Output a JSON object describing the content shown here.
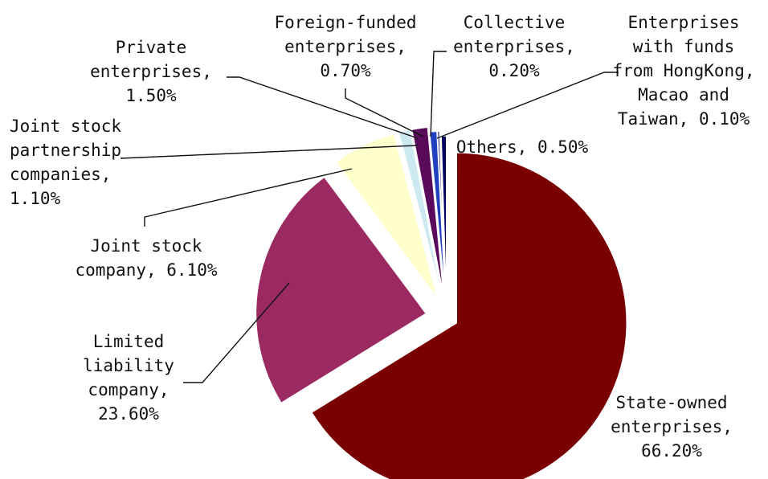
{
  "chart_data": {
    "type": "pie",
    "title": "",
    "legend": "none",
    "slices": [
      {
        "name": "State-owned enterprises",
        "value": 66.2,
        "display": "66.20%",
        "color": "#7a0000"
      },
      {
        "name": "Limited liability company",
        "value": 23.6,
        "display": "23.60%",
        "color": "#9b2a63"
      },
      {
        "name": "Joint stock company",
        "value": 6.1,
        "display": "6.10%",
        "color": "#ffffcc"
      },
      {
        "name": "Joint stock partnership companies",
        "value": 1.1,
        "display": "1.10%",
        "color": "#cce9f2"
      },
      {
        "name": "Private enterprises",
        "value": 1.5,
        "display": "1.50%",
        "color": "#5a0a5a"
      },
      {
        "name": "Foreign-funded enterprises",
        "value": 0.7,
        "display": "0.70%",
        "color": "#2040c0"
      },
      {
        "name": "Collective enterprises",
        "value": 0.2,
        "display": "0.20%",
        "color": "#1a1a80"
      },
      {
        "name": "Enterprises with funds from HongKong, Macao and Taiwan",
        "value": 0.1,
        "display": "0.10%",
        "color": "#00007a"
      },
      {
        "name": "Others",
        "value": 0.5,
        "display": "0.50%",
        "color": "#000060"
      }
    ],
    "labels": [
      {
        "slice": 0,
        "lines": [
          "State-owned",
          "enterprises,",
          "66.20%"
        ]
      },
      {
        "slice": 1,
        "lines": [
          "Limited",
          "liability",
          "company,",
          "23.60%"
        ]
      },
      {
        "slice": 2,
        "lines": [
          "Joint stock",
          "company, 6.10%"
        ]
      },
      {
        "slice": 3,
        "lines": [
          "Joint stock",
          "partnership",
          "companies,",
          "1.10%"
        ]
      },
      {
        "slice": 4,
        "lines": [
          "Private",
          "enterprises,",
          "1.50%"
        ]
      },
      {
        "slice": 5,
        "lines": [
          "Foreign-funded",
          "enterprises,",
          "0.70%"
        ]
      },
      {
        "slice": 6,
        "lines": [
          "Collective",
          "enterprises,",
          "0.20%"
        ]
      },
      {
        "slice": 7,
        "lines": [
          "Enterprises",
          "with funds",
          "from HongKong,",
          "Macao and",
          "Taiwan, 0.10%"
        ]
      },
      {
        "slice": 8,
        "lines": [
          "Others, 0.50%"
        ]
      }
    ]
  }
}
